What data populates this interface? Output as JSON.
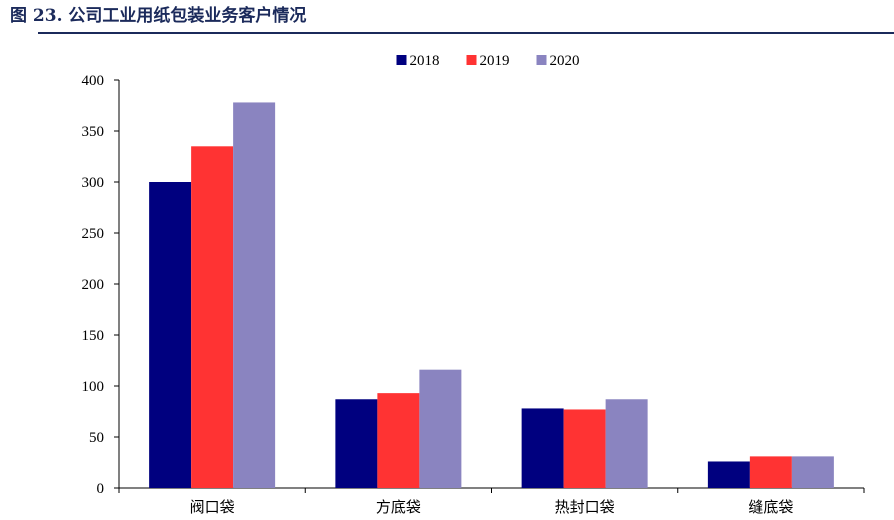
{
  "figure": {
    "title": "图 23. 公司工业用纸包装业务客户情况"
  },
  "chart_data": {
    "type": "bar",
    "title": "",
    "xlabel": "",
    "ylabel": "",
    "categories": [
      "阀口袋",
      "方底袋",
      "热封口袋",
      "缝底袋"
    ],
    "series": [
      {
        "name": "2018",
        "color": "#00007f",
        "values": [
          300,
          87,
          78,
          26
        ]
      },
      {
        "name": "2019",
        "color": "#ff3333",
        "values": [
          335,
          93,
          77,
          31
        ]
      },
      {
        "name": "2020",
        "color": "#8a84c0",
        "values": [
          378,
          116,
          87,
          31
        ]
      }
    ],
    "ylim": [
      0,
      400
    ],
    "yticks": [
      0,
      50,
      100,
      150,
      200,
      250,
      300,
      350,
      400
    ],
    "grid": false,
    "legend_position": "top-center"
  }
}
